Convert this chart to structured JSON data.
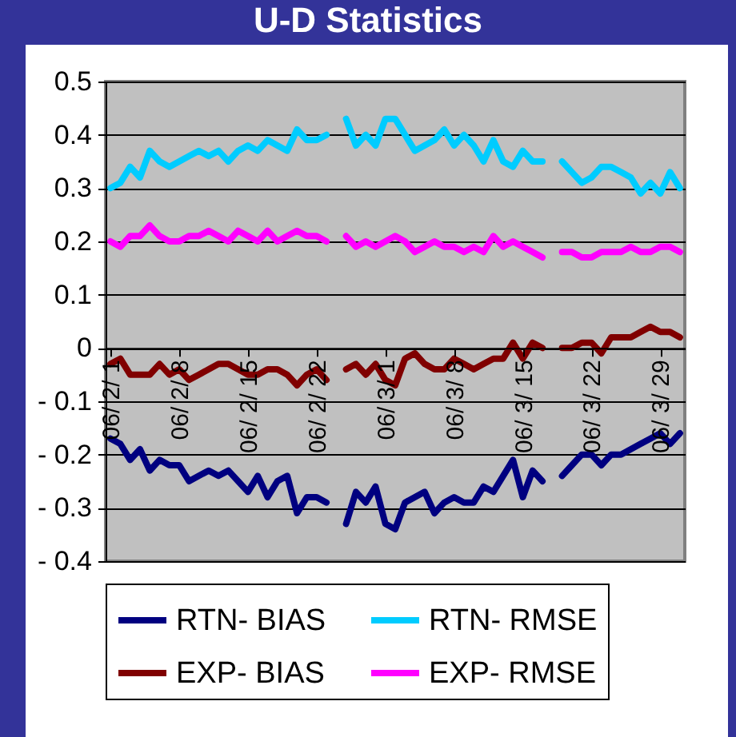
{
  "chart_data": {
    "type": "line",
    "title": "U-D Statistics",
    "categories": [
      "06/ 2/ 1",
      null,
      null,
      null,
      null,
      null,
      null,
      "06/ 2/ 8",
      null,
      null,
      null,
      null,
      null,
      null,
      "06/ 2/ 15",
      null,
      null,
      null,
      null,
      null,
      null,
      "06/ 2/ 22",
      null,
      null,
      null,
      null,
      null,
      null,
      "06/ 3/ 1",
      null,
      null,
      null,
      null,
      null,
      null,
      "06/ 3/ 8",
      null,
      null,
      null,
      null,
      null,
      null,
      "06/ 3/ 15",
      null,
      null,
      null,
      null,
      null,
      null,
      "06/ 3/ 22",
      null,
      null,
      null,
      null,
      null,
      null,
      "06/ 3/ 29",
      null,
      null
    ],
    "series": [
      {
        "name": "RTN- BIAS",
        "color": "#000080",
        "values": [
          -0.17,
          -0.18,
          -0.21,
          -0.19,
          -0.23,
          -0.21,
          -0.22,
          -0.22,
          -0.25,
          -0.24,
          -0.23,
          -0.24,
          -0.23,
          -0.25,
          -0.27,
          -0.24,
          -0.28,
          -0.25,
          -0.24,
          -0.31,
          -0.28,
          -0.28,
          -0.29,
          null,
          -0.33,
          -0.27,
          -0.29,
          -0.26,
          -0.33,
          -0.34,
          -0.29,
          -0.28,
          -0.27,
          -0.31,
          -0.29,
          -0.28,
          -0.29,
          -0.29,
          -0.26,
          -0.27,
          -0.24,
          -0.21,
          -0.28,
          -0.23,
          -0.25,
          null,
          -0.24,
          -0.22,
          -0.2,
          -0.2,
          -0.22,
          -0.2,
          -0.2,
          -0.19,
          -0.18,
          -0.17,
          -0.16,
          -0.18,
          -0.16
        ]
      },
      {
        "name": "RTN- RMSE",
        "color": "#00ccff",
        "values": [
          0.3,
          0.31,
          0.34,
          0.32,
          0.37,
          0.35,
          0.34,
          0.35,
          0.36,
          0.37,
          0.36,
          0.37,
          0.35,
          0.37,
          0.38,
          0.37,
          0.39,
          0.38,
          0.37,
          0.41,
          0.39,
          0.39,
          0.4,
          null,
          0.43,
          0.38,
          0.4,
          0.38,
          0.43,
          0.43,
          0.4,
          0.37,
          0.38,
          0.39,
          0.41,
          0.38,
          0.4,
          0.38,
          0.35,
          0.39,
          0.35,
          0.34,
          0.37,
          0.35,
          0.35,
          null,
          0.35,
          0.33,
          0.31,
          0.32,
          0.34,
          0.34,
          0.33,
          0.32,
          0.29,
          0.31,
          0.29,
          0.33,
          0.3
        ]
      },
      {
        "name": "EXP- BIAS",
        "color": "#800000",
        "values": [
          -0.03,
          -0.02,
          -0.05,
          -0.05,
          -0.05,
          -0.03,
          -0.05,
          -0.04,
          -0.06,
          -0.05,
          -0.04,
          -0.03,
          -0.03,
          -0.04,
          -0.05,
          -0.05,
          -0.04,
          -0.04,
          -0.05,
          -0.07,
          -0.05,
          -0.04,
          -0.06,
          null,
          -0.04,
          -0.03,
          -0.05,
          -0.03,
          -0.06,
          -0.07,
          -0.02,
          -0.01,
          -0.03,
          -0.04,
          -0.04,
          -0.02,
          -0.03,
          -0.04,
          -0.03,
          -0.02,
          -0.02,
          0.01,
          -0.02,
          0.01,
          0,
          null,
          0,
          0,
          0.01,
          0.01,
          -0.01,
          0.02,
          0.02,
          0.02,
          0.03,
          0.04,
          0.03,
          0.03,
          0.02
        ]
      },
      {
        "name": "EXP- RMSE",
        "color": "#ff00ff",
        "values": [
          0.2,
          0.19,
          0.21,
          0.21,
          0.23,
          0.21,
          0.2,
          0.2,
          0.21,
          0.21,
          0.22,
          0.21,
          0.2,
          0.22,
          0.21,
          0.2,
          0.22,
          0.2,
          0.21,
          0.22,
          0.21,
          0.21,
          0.2,
          null,
          0.21,
          0.19,
          0.2,
          0.19,
          0.2,
          0.21,
          0.2,
          0.18,
          0.19,
          0.2,
          0.19,
          0.19,
          0.18,
          0.19,
          0.18,
          0.21,
          0.19,
          0.2,
          0.19,
          0.18,
          0.17,
          null,
          0.18,
          0.18,
          0.17,
          0.17,
          0.18,
          0.18,
          0.18,
          0.19,
          0.18,
          0.18,
          0.19,
          0.19,
          0.18
        ]
      }
    ],
    "ylim": [
      -0.4,
      0.5
    ],
    "yticks": [
      {
        "value": -0.4,
        "label": "- 0.4"
      },
      {
        "value": -0.3,
        "label": "- 0.3"
      },
      {
        "value": -0.2,
        "label": "- 0.2"
      },
      {
        "value": -0.1,
        "label": "- 0.1"
      },
      0,
      0.1,
      0.2,
      0.3,
      0.4,
      0.5
    ],
    "grid": "y",
    "legend": "bottom"
  }
}
